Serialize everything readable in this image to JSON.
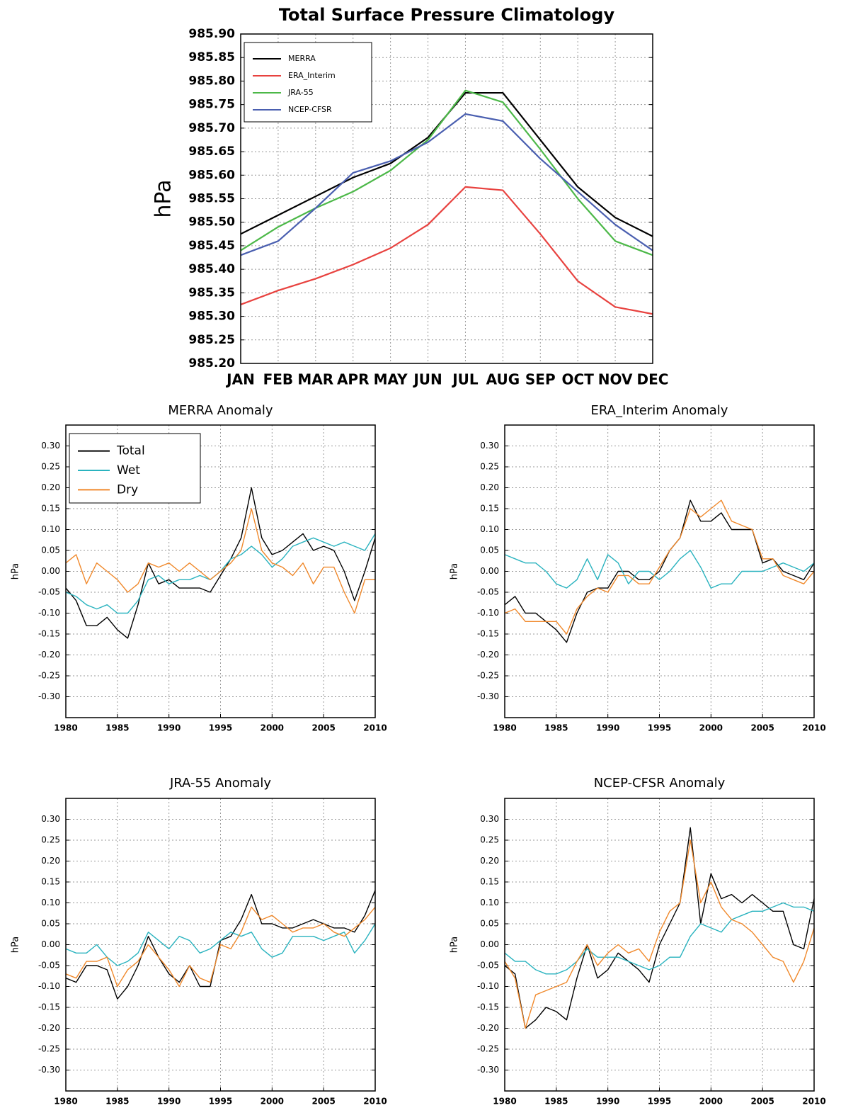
{
  "chart_data": [
    {
      "type": "line",
      "title": "Total Surface Pressure Climatology",
      "ylabel": "hPa",
      "categories": [
        "JAN",
        "FEB",
        "MAR",
        "APR",
        "MAY",
        "JUN",
        "JUL",
        "AUG",
        "SEP",
        "OCT",
        "NOV",
        "DEC"
      ],
      "ylim": [
        985.2,
        985.9
      ],
      "yticks": [
        {
          "value": 985.2,
          "label": "985.20"
        },
        985.25,
        {
          "value": 985.3,
          "label": "985.30"
        },
        985.35,
        {
          "value": 985.4,
          "label": "985.40"
        },
        985.45,
        {
          "value": 985.5,
          "label": "985.50"
        },
        985.55,
        {
          "value": 985.6,
          "label": "985.60"
        },
        985.65,
        {
          "value": 985.7,
          "label": "985.70"
        },
        985.75,
        {
          "value": 985.8,
          "label": "985.80"
        },
        985.85,
        {
          "value": 985.9,
          "label": "985.90"
        }
      ],
      "grid": true,
      "legend": "upper left",
      "series": [
        {
          "name": "MERRA",
          "color": "#000000",
          "values": [
            985.475,
            985.515,
            985.555,
            985.595,
            985.625,
            985.68,
            985.775,
            985.775,
            985.675,
            985.575,
            985.51,
            985.47
          ]
        },
        {
          "name": "ERA_Interim",
          "color": "#e8423f",
          "values": [
            985.325,
            985.355,
            985.38,
            985.41,
            985.445,
            985.495,
            985.575,
            985.568,
            985.475,
            985.375,
            985.32,
            985.305
          ]
        },
        {
          "name": "JRA-55",
          "color": "#4cb848",
          "values": [
            985.44,
            985.49,
            985.53,
            985.565,
            985.61,
            985.675,
            985.78,
            985.755,
            985.655,
            985.55,
            985.46,
            985.43
          ]
        },
        {
          "name": "NCEP-CFSR",
          "color": "#4a5fb0",
          "values": [
            985.43,
            985.46,
            985.53,
            985.605,
            985.63,
            985.67,
            985.73,
            985.715,
            985.635,
            985.565,
            985.495,
            985.44
          ]
        }
      ]
    },
    {
      "type": "line",
      "title": "MERRA Anomaly",
      "ylabel": "hPa",
      "x": [
        1980,
        1981,
        1982,
        1983,
        1984,
        1985,
        1986,
        1987,
        1988,
        1989,
        1990,
        1991,
        1992,
        1993,
        1994,
        1995,
        1996,
        1997,
        1998,
        1999,
        2000,
        2001,
        2002,
        2003,
        2004,
        2005,
        2006,
        2007,
        2008,
        2009,
        2010
      ],
      "xlim": [
        1980,
        2010
      ],
      "xticks": [
        1980,
        1985,
        1990,
        1995,
        2000,
        2005,
        2010
      ],
      "ylim": [
        -0.35,
        0.35
      ],
      "yticks": [
        {
          "value": 0.3,
          "label": "0.30"
        },
        0.25,
        {
          "value": 0.2,
          "label": "0.20"
        },
        0.15,
        {
          "value": 0.1,
          "label": "0.10"
        },
        0.05,
        {
          "value": 0,
          "label": "0.00"
        },
        -0.05,
        {
          "value": -0.1,
          "label": "-0.10"
        },
        -0.15,
        {
          "value": -0.2,
          "label": "-0.20"
        },
        -0.25,
        {
          "value": -0.3,
          "label": "-0.30"
        }
      ],
      "grid": true,
      "legend": "upper left",
      "series": [
        {
          "name": "Total",
          "color": "#000000",
          "values": [
            -0.04,
            -0.07,
            -0.13,
            -0.13,
            -0.11,
            -0.14,
            -0.16,
            -0.08,
            0.02,
            -0.03,
            -0.02,
            -0.04,
            -0.04,
            -0.04,
            -0.05,
            -0.01,
            0.03,
            0.08,
            0.2,
            0.08,
            0.04,
            0.05,
            0.07,
            0.09,
            0.05,
            0.06,
            0.05,
            0,
            -0.07,
            0,
            0.08
          ]
        },
        {
          "name": "Wet",
          "color": "#2ab3bf",
          "values": [
            -0.05,
            -0.06,
            -0.08,
            -0.09,
            -0.08,
            -0.1,
            -0.1,
            -0.07,
            -0.02,
            -0.01,
            -0.03,
            -0.02,
            -0.02,
            -0.01,
            -0.02,
            0,
            0.03,
            0.04,
            0.06,
            0.04,
            0.01,
            0.03,
            0.06,
            0.07,
            0.08,
            0.07,
            0.06,
            0.07,
            0.06,
            0.05,
            0.09
          ]
        },
        {
          "name": "Dry",
          "color": "#f0892c",
          "values": [
            0.02,
            0.04,
            -0.03,
            0.02,
            0,
            -0.02,
            -0.05,
            -0.03,
            0.02,
            0.01,
            0.02,
            0,
            0.02,
            0,
            -0.02,
            0,
            0.02,
            0.05,
            0.15,
            0.05,
            0.02,
            0.01,
            -0.01,
            0.02,
            -0.03,
            0.01,
            0.01,
            -0.05,
            -0.1,
            -0.02,
            -0.02
          ]
        }
      ]
    },
    {
      "type": "line",
      "title": "ERA_Interim Anomaly",
      "ylabel": "hPa",
      "x": [
        1980,
        1981,
        1982,
        1983,
        1984,
        1985,
        1986,
        1987,
        1988,
        1989,
        1990,
        1991,
        1992,
        1993,
        1994,
        1995,
        1996,
        1997,
        1998,
        1999,
        2000,
        2001,
        2002,
        2003,
        2004,
        2005,
        2006,
        2007,
        2008,
        2009,
        2010
      ],
      "xlim": [
        1980,
        2010
      ],
      "xticks": [
        1980,
        1985,
        1990,
        1995,
        2000,
        2005,
        2010
      ],
      "ylim": [
        -0.35,
        0.35
      ],
      "yticks": [
        {
          "value": 0.3,
          "label": "0.30"
        },
        0.25,
        {
          "value": 0.2,
          "label": "0.20"
        },
        0.15,
        {
          "value": 0.1,
          "label": "0.10"
        },
        0.05,
        {
          "value": 0,
          "label": "0.00"
        },
        -0.05,
        {
          "value": -0.1,
          "label": "-0.10"
        },
        -0.15,
        {
          "value": -0.2,
          "label": "-0.20"
        },
        -0.25,
        {
          "value": -0.3,
          "label": "-0.30"
        }
      ],
      "grid": true,
      "series": [
        {
          "color": "#000000",
          "values": [
            -0.08,
            -0.06,
            -0.1,
            -0.1,
            -0.12,
            -0.14,
            -0.17,
            -0.1,
            -0.05,
            -0.04,
            -0.04,
            0,
            0,
            -0.02,
            -0.02,
            0,
            0.05,
            0.08,
            0.17,
            0.12,
            0.12,
            0.14,
            0.1,
            0.1,
            0.1,
            0.02,
            0.03,
            0,
            -0.01,
            -0.02,
            0.02
          ]
        },
        {
          "color": "#2ab3bf",
          "values": [
            0.04,
            0.03,
            0.02,
            0.02,
            0,
            -0.03,
            -0.04,
            -0.02,
            0.03,
            -0.02,
            0.04,
            0.02,
            -0.03,
            0,
            0,
            -0.02,
            0,
            0.03,
            0.05,
            0.01,
            -0.04,
            -0.03,
            -0.03,
            0,
            0,
            0,
            0.01,
            0.02,
            0.01,
            0,
            0.02
          ]
        },
        {
          "color": "#f0892c",
          "values": [
            -0.1,
            -0.09,
            -0.12,
            -0.12,
            -0.12,
            -0.12,
            -0.15,
            -0.09,
            -0.06,
            -0.04,
            -0.05,
            -0.01,
            -0.01,
            -0.03,
            -0.03,
            0.01,
            0.05,
            0.08,
            0.15,
            0.13,
            0.15,
            0.17,
            0.12,
            0.11,
            0.1,
            0.03,
            0.03,
            -0.01,
            -0.02,
            -0.03,
            0
          ]
        }
      ]
    },
    {
      "type": "line",
      "title": "JRA-55 Anomaly",
      "ylabel": "hPa",
      "x": [
        1980,
        1981,
        1982,
        1983,
        1984,
        1985,
        1986,
        1987,
        1988,
        1989,
        1990,
        1991,
        1992,
        1993,
        1994,
        1995,
        1996,
        1997,
        1998,
        1999,
        2000,
        2001,
        2002,
        2003,
        2004,
        2005,
        2006,
        2007,
        2008,
        2009,
        2010
      ],
      "xlim": [
        1980,
        2010
      ],
      "xticks": [
        1980,
        1985,
        1990,
        1995,
        2000,
        2005,
        2010
      ],
      "ylim": [
        -0.35,
        0.35
      ],
      "yticks": [
        {
          "value": 0.3,
          "label": "0.30"
        },
        0.25,
        {
          "value": 0.2,
          "label": "0.20"
        },
        0.15,
        {
          "value": 0.1,
          "label": "0.10"
        },
        0.05,
        {
          "value": 0,
          "label": "0.00"
        },
        -0.05,
        {
          "value": -0.1,
          "label": "-0.10"
        },
        -0.15,
        {
          "value": -0.2,
          "label": "-0.20"
        },
        -0.25,
        {
          "value": -0.3,
          "label": "-0.30"
        }
      ],
      "grid": true,
      "series": [
        {
          "color": "#000000",
          "values": [
            -0.08,
            -0.09,
            -0.05,
            -0.05,
            -0.06,
            -0.13,
            -0.1,
            -0.05,
            0.02,
            -0.03,
            -0.07,
            -0.09,
            -0.05,
            -0.1,
            -0.1,
            0.01,
            0.02,
            0.06,
            0.12,
            0.05,
            0.05,
            0.04,
            0.04,
            0.05,
            0.06,
            0.05,
            0.04,
            0.04,
            0.03,
            0.07,
            0.13
          ]
        },
        {
          "color": "#2ab3bf",
          "values": [
            -0.01,
            -0.02,
            -0.02,
            0,
            -0.03,
            -0.05,
            -0.04,
            -0.02,
            0.03,
            0.01,
            -0.01,
            0.02,
            0.01,
            -0.02,
            -0.01,
            0.01,
            0.03,
            0.02,
            0.03,
            -0.01,
            -0.03,
            -0.02,
            0.02,
            0.02,
            0.02,
            0.01,
            0.02,
            0.03,
            -0.02,
            0.01,
            0.05
          ]
        },
        {
          "color": "#f0892c",
          "values": [
            -0.07,
            -0.08,
            -0.04,
            -0.04,
            -0.03,
            -0.1,
            -0.06,
            -0.04,
            0,
            -0.03,
            -0.06,
            -0.1,
            -0.05,
            -0.08,
            -0.09,
            0,
            -0.01,
            0.03,
            0.09,
            0.06,
            0.07,
            0.05,
            0.03,
            0.04,
            0.04,
            0.05,
            0.03,
            0.02,
            0.04,
            0.06,
            0.09
          ]
        }
      ]
    },
    {
      "type": "line",
      "title": "NCEP-CFSR Anomaly",
      "ylabel": "hPa",
      "x": [
        1980,
        1981,
        1982,
        1983,
        1984,
        1985,
        1986,
        1987,
        1988,
        1989,
        1990,
        1991,
        1992,
        1993,
        1994,
        1995,
        1996,
        1997,
        1998,
        1999,
        2000,
        2001,
        2002,
        2003,
        2004,
        2005,
        2006,
        2007,
        2008,
        2009,
        2010
      ],
      "xlim": [
        1980,
        2010
      ],
      "xticks": [
        1980,
        1985,
        1990,
        1995,
        2000,
        2005,
        2010
      ],
      "ylim": [
        -0.35,
        0.35
      ],
      "yticks": [
        {
          "value": 0.3,
          "label": "0.30"
        },
        0.25,
        {
          "value": 0.2,
          "label": "0.20"
        },
        0.15,
        {
          "value": 0.1,
          "label": "0.10"
        },
        0.05,
        {
          "value": 0,
          "label": "0.00"
        },
        -0.05,
        {
          "value": -0.1,
          "label": "-0.10"
        },
        -0.15,
        {
          "value": -0.2,
          "label": "-0.20"
        },
        -0.25,
        {
          "value": -0.3,
          "label": "-0.30"
        }
      ],
      "grid": true,
      "series": [
        {
          "color": "#000000",
          "values": [
            -0.05,
            -0.07,
            -0.2,
            -0.18,
            -0.15,
            -0.16,
            -0.18,
            -0.08,
            0,
            -0.08,
            -0.06,
            -0.02,
            -0.04,
            -0.06,
            -0.09,
            0,
            0.05,
            0.1,
            0.28,
            0.05,
            0.17,
            0.11,
            0.12,
            0.1,
            0.12,
            0.1,
            0.08,
            0.08,
            0,
            -0.01,
            0.11
          ]
        },
        {
          "color": "#2ab3bf",
          "values": [
            -0.02,
            -0.04,
            -0.04,
            -0.06,
            -0.07,
            -0.07,
            -0.06,
            -0.04,
            -0.01,
            -0.03,
            -0.03,
            -0.03,
            -0.04,
            -0.05,
            -0.06,
            -0.05,
            -0.03,
            -0.03,
            0.02,
            0.05,
            0.04,
            0.03,
            0.06,
            0.07,
            0.08,
            0.08,
            0.09,
            0.1,
            0.09,
            0.09,
            0.08
          ]
        },
        {
          "color": "#f0892c",
          "values": [
            -0.04,
            -0.08,
            -0.2,
            -0.12,
            -0.11,
            -0.1,
            -0.09,
            -0.04,
            0,
            -0.05,
            -0.02,
            0,
            -0.02,
            -0.01,
            -0.04,
            0.03,
            0.08,
            0.1,
            0.25,
            0.1,
            0.15,
            0.09,
            0.06,
            0.05,
            0.03,
            0,
            -0.03,
            -0.04,
            -0.09,
            -0.04,
            0.04
          ]
        }
      ]
    }
  ]
}
